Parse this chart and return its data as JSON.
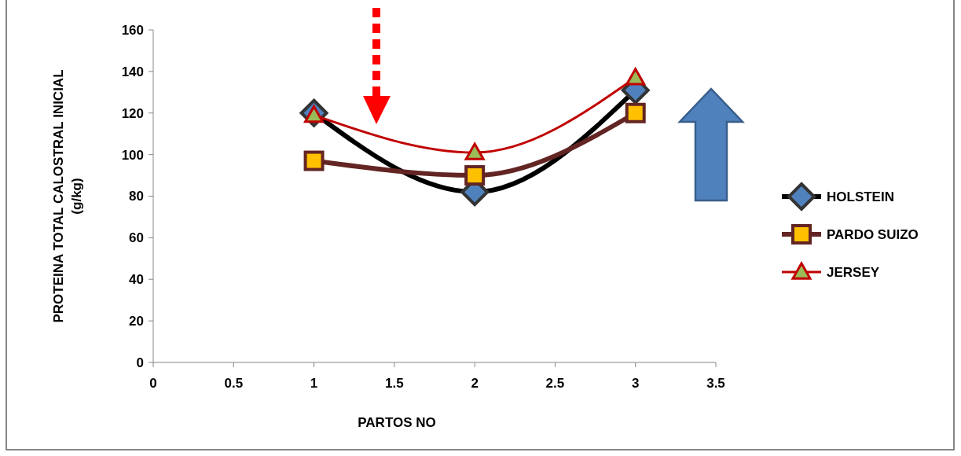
{
  "chart_data": {
    "type": "line",
    "xlabel": "PARTOS NO",
    "ylabel": "PROTEINA TOTAL CALOSTRAL INICIAL (g/kg)",
    "x": [
      1,
      2,
      3
    ],
    "series": [
      {
        "name": "HOLSTEIN",
        "color": "#000000",
        "marker": "diamond",
        "values": [
          120,
          82,
          131
        ]
      },
      {
        "name": "PARDO SUIZO",
        "color": "#632523",
        "marker": "square",
        "values": [
          97,
          90,
          120
        ]
      },
      {
        "name": "JERSEY",
        "color": "#c00000",
        "marker": "triangle",
        "values": [
          119,
          101,
          137
        ]
      }
    ],
    "xlim": [
      0,
      3.5
    ],
    "xticks": [
      0,
      0.5,
      1,
      1.5,
      2,
      2.5,
      3,
      3.5
    ],
    "ylim": [
      0,
      160
    ],
    "yticks": [
      0,
      20,
      40,
      60,
      80,
      100,
      120,
      140,
      160
    ],
    "grid": false,
    "legend": "right"
  }
}
